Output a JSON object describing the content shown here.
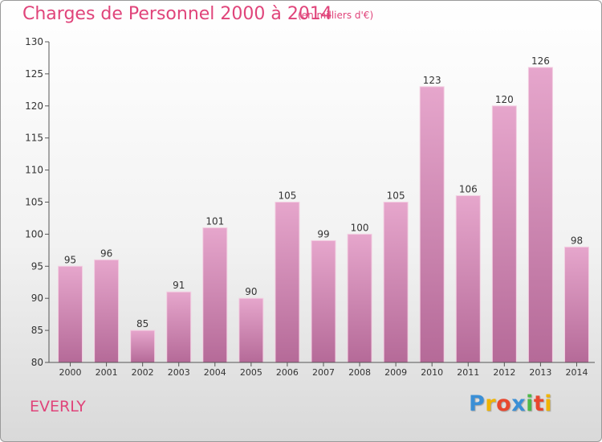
{
  "header": {
    "title": "Charges de Personnel 2000 à 2014",
    "subtitle": "(en milliers d'€)"
  },
  "footer": {
    "place": "EVERLY",
    "logo_letters": [
      "P",
      "r",
      "o",
      "x",
      "i",
      "t",
      "i"
    ],
    "logo_colors": [
      "#3a8fd6",
      "#f0b400",
      "#e8472e",
      "#3a8fd6",
      "#4db848",
      "#e8472e",
      "#f0b400"
    ]
  },
  "colors": {
    "accent": "#e0447a",
    "bar_top": "#e6a6cc",
    "bar_bottom": "#b56a98"
  },
  "chart_data": {
    "type": "bar",
    "categories": [
      "2000",
      "2001",
      "2002",
      "2003",
      "2004",
      "2005",
      "2006",
      "2007",
      "2008",
      "2009",
      "2010",
      "2011",
      "2012",
      "2013",
      "2014"
    ],
    "values": [
      95,
      96,
      85,
      91,
      101,
      90,
      105,
      99,
      100,
      105,
      123,
      106,
      120,
      126,
      98
    ],
    "ylim": [
      80,
      130
    ],
    "yticks": [
      80,
      85,
      90,
      95,
      100,
      105,
      110,
      115,
      120,
      125,
      130
    ],
    "grid": false,
    "data_labels": true
  }
}
